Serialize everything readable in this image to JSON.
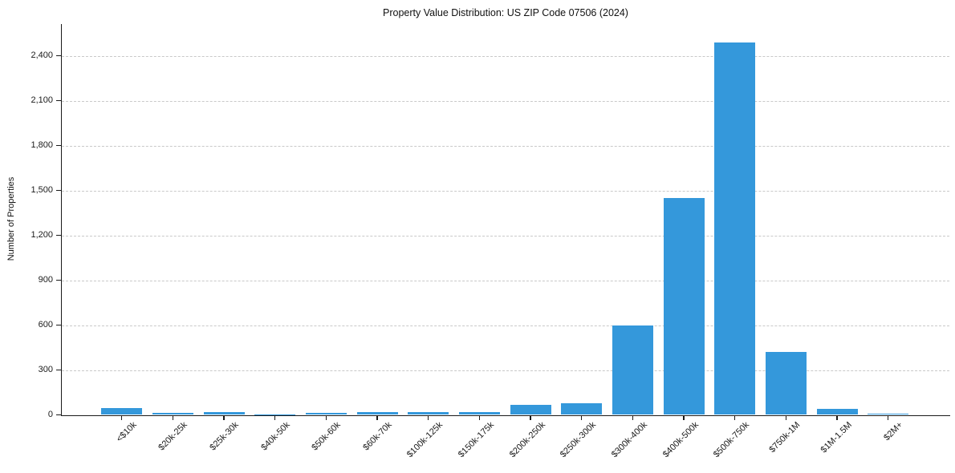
{
  "chart_data": {
    "type": "bar",
    "title": "Property Value Distribution: US ZIP Code 07506 (2024)",
    "xlabel": "",
    "ylabel": "Number of Properties",
    "categories": [
      "<$10k",
      "$20k-25k",
      "$25k-30k",
      "$40k-50k",
      "$50k-60k",
      "$60k-70k",
      "$100k-125k",
      "$150k-175k",
      "$200k-250k",
      "$250k-300k",
      "$300k-400k",
      "$400k-500k",
      "$500k-750k",
      "$750k-1M",
      "$1M-1.5M",
      "$2M+"
    ],
    "values": [
      45,
      12,
      20,
      4,
      12,
      20,
      20,
      18,
      65,
      80,
      597,
      1448,
      2486,
      420,
      42,
      10
    ],
    "yticks": [
      0,
      300,
      600,
      900,
      1200,
      1500,
      1800,
      2100,
      2400
    ],
    "ylim": [
      0,
      2610
    ],
    "grid": "horizontal-dashed",
    "legend": "none",
    "bar_color": "#3498db",
    "gridline_color": "#c9c9c9",
    "axis_color": "#1a1a1a",
    "text_color": "#111111"
  }
}
